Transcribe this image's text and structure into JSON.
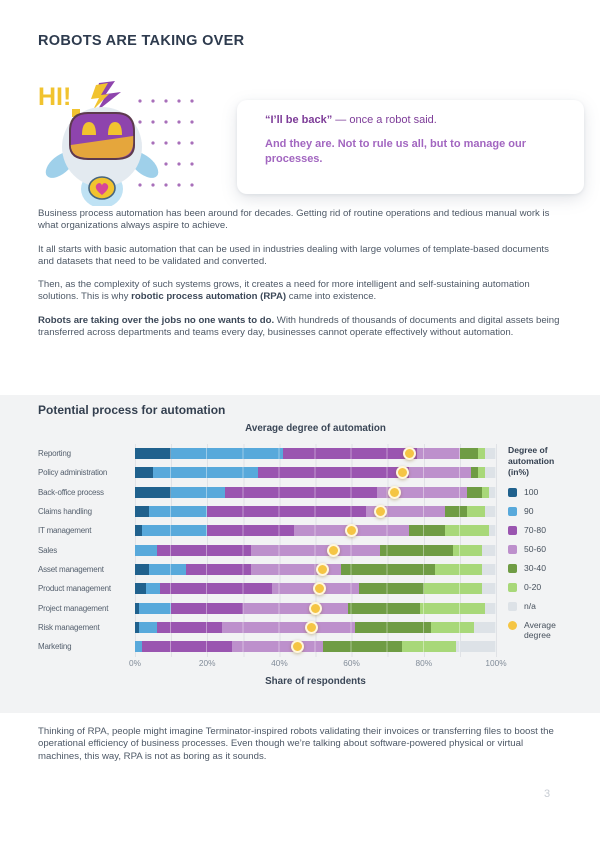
{
  "page": {
    "number": "3"
  },
  "header": {
    "title": "ROBOTS ARE TAKING OVER",
    "hi_text": "HI!"
  },
  "quote": {
    "line1_bold": "“I’ll be back”",
    "line1_rest": " — once a robot said.",
    "line2": "And they are. Not to rule us all, but to manage our processes."
  },
  "paragraphs": {
    "p1": "Business process automation has been around for decades. Getting rid of routine operations and tedious manual work is what organizations always aspire to achieve.",
    "p2": "It all starts with basic automation that can be used in industries dealing with large volumes of template-based documents and datasets that need to be validated and converted.",
    "p3_pre": "Then, as the complexity of such systems grows, it creates a need for more intelligent and self-sustaining automation solutions. This is why ",
    "p3_bold": "robotic process automation (RPA)",
    "p3_post": " came into existence.",
    "p4_bold": "Robots are taking over the jobs no one wants to do.",
    "p4_rest": " With hundreds of thousands of documents and digital assets being transferred across departments and teams every day, businesses cannot operate effectively without automation.",
    "footer": "Thinking of RPA, people might imagine Terminator-inspired robots validating their invoices or transferring files to boost the operational efficiency of business processes. Even though we’re talking about software-powered physical or virtual machines, this way, RPA is not as boring as it sounds."
  },
  "chart_data": {
    "type": "bar",
    "orientation": "horizontal-stacked",
    "section_title": "Potential process for automation",
    "title": "Average degree of automation",
    "xlabel": "Share of respondents",
    "x_ticks": [
      "0%",
      "20%",
      "40%",
      "60%",
      "80%",
      "100%"
    ],
    "xlim": [
      0,
      100
    ],
    "grid": "vertical lines every 10%",
    "legend_position": "right",
    "legend_title": "Degree of automation (in%)",
    "series_names": [
      "100",
      "90",
      "70-80",
      "50-60",
      "30-40",
      "0-20",
      "n/a"
    ],
    "series_colors": [
      "#20618d",
      "#58a9db",
      "#9a55b0",
      "#bd90cc",
      "#6f9c44",
      "#a8d879",
      "#dde2e7"
    ],
    "average_marker": {
      "label": "Average degree",
      "color": "#f5c544"
    },
    "categories": [
      "Reporting",
      "Policy administration",
      "Back-office process",
      "Claims handling",
      "IT management",
      "Sales",
      "Asset management",
      "Product management",
      "Project management",
      "Risk management",
      "Marketing"
    ],
    "rows": [
      {
        "label": "Reporting",
        "values": [
          10,
          31,
          37,
          12,
          5,
          2,
          3
        ],
        "average": 76
      },
      {
        "label": "Policy administration",
        "values": [
          5,
          29,
          42,
          17,
          2,
          2,
          3
        ],
        "average": 74
      },
      {
        "label": "Back-office process",
        "values": [
          10,
          15,
          42,
          25,
          4,
          2,
          2
        ],
        "average": 72
      },
      {
        "label": "Claims handling",
        "values": [
          4,
          16,
          44,
          22,
          6,
          5,
          3
        ],
        "average": 68
      },
      {
        "label": "IT management",
        "values": [
          2,
          18,
          24,
          32,
          10,
          12,
          2
        ],
        "average": 60
      },
      {
        "label": "Sales",
        "values": [
          0,
          6,
          26,
          36,
          20,
          8,
          4
        ],
        "average": 55
      },
      {
        "label": "Asset management",
        "values": [
          4,
          10,
          18,
          25,
          26,
          13,
          4
        ],
        "average": 52
      },
      {
        "label": "Product management",
        "values": [
          3,
          4,
          31,
          24,
          18,
          16,
          4
        ],
        "average": 51
      },
      {
        "label": "Project management",
        "values": [
          1,
          9,
          20,
          29,
          20,
          18,
          3
        ],
        "average": 50
      },
      {
        "label": "Risk management",
        "values": [
          1,
          5,
          18,
          37,
          21,
          12,
          6
        ],
        "average": 49
      },
      {
        "label": "Marketing",
        "values": [
          0,
          2,
          25,
          25,
          22,
          15,
          11
        ],
        "average": 45
      }
    ]
  },
  "colors": {
    "heading": "#2e3b4e",
    "body_text": "#4d5866",
    "quote_dark_purple": "#7d3c98",
    "quote_light_purple": "#a266c0",
    "panel_background": "#f2f3f4",
    "robot_yellow": "#f1c32f",
    "robot_purple": "#8e44ad",
    "robot_blue": "#9fd0ea",
    "robot_pink": "#d6459a",
    "average_dot": "#f5c544"
  }
}
